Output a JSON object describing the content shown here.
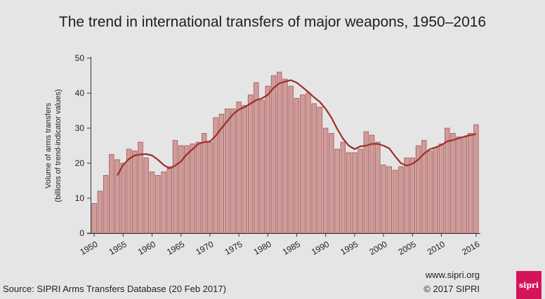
{
  "page": {
    "title": "The trend in international transfers of major weapons, 1950–2016",
    "source": "Source: SIPRI Arms Transfers Database (20 Feb 2017)",
    "website": "www.sipri.org",
    "copyright": "© 2017 SIPRI",
    "logo_text": "sipri"
  },
  "colors": {
    "bar_fill": "#cf9c9a",
    "bar_stroke": "#9e4a48",
    "trend_line": "#9c2f2b",
    "logo": "#d4145a"
  },
  "chart_data": {
    "type": "bar",
    "title": "The trend in international transfers of major weapons, 1950–2016",
    "ylabel_line1": "Volume of arms transfers",
    "ylabel_line2": "(billions of trend-indicator values)",
    "ylim": [
      0,
      50
    ],
    "yticks": [
      0,
      10,
      20,
      30,
      40,
      50
    ],
    "xtick_labels": [
      "1950",
      "1955",
      "1960",
      "1965",
      "1970",
      "1975",
      "1980",
      "1985",
      "1990",
      "1995",
      "2000",
      "2005",
      "2010",
      "2016"
    ],
    "grid": false,
    "categories": [
      1950,
      1951,
      1952,
      1953,
      1954,
      1955,
      1956,
      1957,
      1958,
      1959,
      1960,
      1961,
      1962,
      1963,
      1964,
      1965,
      1966,
      1967,
      1968,
      1969,
      1970,
      1971,
      1972,
      1973,
      1974,
      1975,
      1976,
      1977,
      1978,
      1979,
      1980,
      1981,
      1982,
      1983,
      1984,
      1985,
      1986,
      1987,
      1988,
      1989,
      1990,
      1991,
      1992,
      1993,
      1994,
      1995,
      1996,
      1997,
      1998,
      1999,
      2000,
      2001,
      2002,
      2003,
      2004,
      2005,
      2006,
      2007,
      2008,
      2009,
      2010,
      2011,
      2012,
      2013,
      2014,
      2015,
      2016
    ],
    "series": [
      {
        "values": [
          8.5,
          12,
          16.5,
          22.5,
          21,
          20,
          24,
          23.5,
          26,
          21.5,
          17.5,
          16.5,
          17.5,
          19,
          26.5,
          25,
          25,
          25.5,
          26,
          28.5,
          26,
          33,
          34,
          35.5,
          35.5,
          37.5,
          36.5,
          39.5,
          43,
          38,
          42,
          45,
          46,
          44,
          42,
          38.5,
          39.5,
          40,
          37,
          36,
          30,
          28.5,
          24,
          26,
          23,
          23,
          24,
          29,
          28,
          26,
          19.5,
          19,
          18,
          19,
          21.5,
          21.5,
          25,
          26.5,
          23.5,
          24.5,
          25.5,
          30,
          28.5,
          27.5,
          27.5,
          28.5,
          31
        ]
      },
      {
        "type": "line",
        "x": [
          1954,
          1955,
          1956,
          1957,
          1958,
          1959,
          1960,
          1961,
          1962,
          1963,
          1964,
          1965,
          1966,
          1967,
          1968,
          1969,
          1970,
          1971,
          1972,
          1973,
          1974,
          1975,
          1976,
          1977,
          1978,
          1979,
          1980,
          1981,
          1982,
          1983,
          1984,
          1985,
          1986,
          1987,
          1988,
          1989,
          1990,
          1991,
          1992,
          1993,
          1994,
          1995,
          1996,
          1997,
          1998,
          1999,
          2000,
          2001,
          2002,
          2003,
          2004,
          2005,
          2006,
          2007,
          2008,
          2009,
          2010,
          2011,
          2012,
          2013,
          2014,
          2015,
          2016
        ],
        "values": [
          16.5,
          19.5,
          21.2,
          22.2,
          22.5,
          22.6,
          22.2,
          21,
          19.5,
          18.5,
          19.3,
          20.5,
          22.5,
          24,
          25.5,
          26,
          26.2,
          27.8,
          30,
          32,
          34,
          35.3,
          36,
          37,
          38,
          38.5,
          39.5,
          41.5,
          42.8,
          43.3,
          43.7,
          43,
          41.7,
          40.3,
          38.8,
          37.5,
          35.5,
          33,
          29.8,
          27,
          25,
          24,
          24.8,
          25,
          25.5,
          25.5,
          25,
          24.2,
          22,
          20,
          19.3,
          19.8,
          21,
          22.7,
          24,
          24.5,
          25.2,
          26.2,
          26.6,
          27.1,
          27.6,
          28,
          28.3
        ]
      }
    ]
  }
}
